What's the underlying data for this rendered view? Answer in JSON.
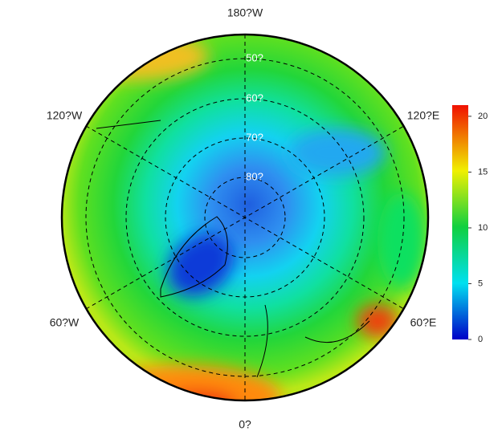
{
  "map": {
    "meridian_labels": [
      "180?W",
      "120?W",
      "120?E",
      "60?W",
      "60?E",
      "0?"
    ],
    "latitude_labels": [
      "50?",
      "60?",
      "70?",
      "80?"
    ]
  },
  "colorbar": {
    "lim": [
      0,
      21
    ],
    "ticks": [
      0,
      5,
      10,
      15,
      20
    ]
  }
}
